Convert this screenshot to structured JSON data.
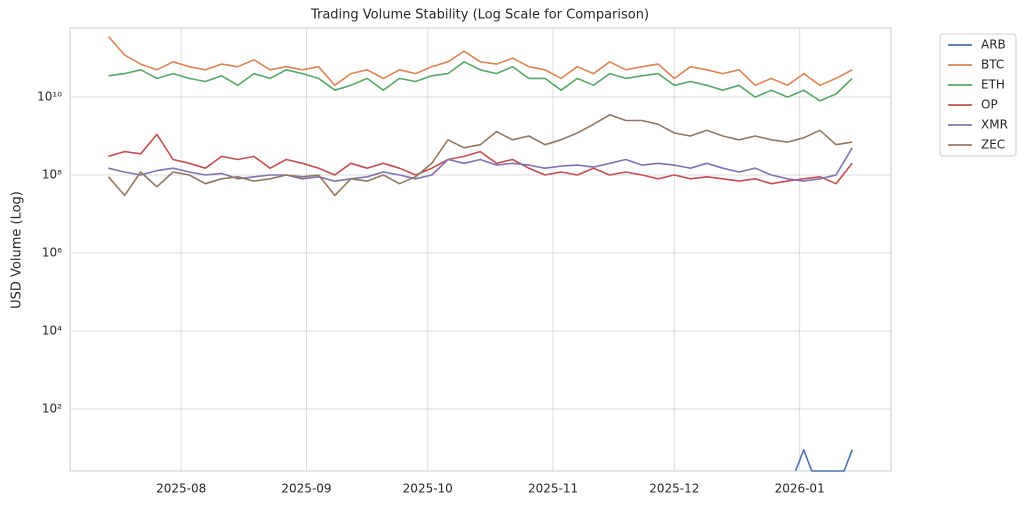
{
  "chart_data": {
    "type": "line",
    "title": "Trading Volume Stability (Log Scale for Comparison)",
    "ylabel": "USD Volume (Log)",
    "log_y": true,
    "grid": true,
    "legend": "outside-upper-right",
    "x": [
      13,
      17,
      21,
      25,
      29,
      33,
      37,
      41,
      45,
      49,
      53,
      57,
      61,
      65,
      69,
      73,
      77,
      81,
      85,
      89,
      93,
      97,
      101,
      105,
      109,
      113,
      117,
      121,
      125,
      129,
      133,
      137,
      141,
      145,
      149,
      153,
      157,
      161,
      165,
      169,
      173,
      177,
      181,
      185,
      189,
      193,
      197
    ],
    "xlim": [
      3.5,
      206.6
    ],
    "xticks": [
      {
        "value": 31,
        "label": "2025-08"
      },
      {
        "value": 62,
        "label": "2025-09"
      },
      {
        "value": 92,
        "label": "2025-10"
      },
      {
        "value": 123,
        "label": "2025-11"
      },
      {
        "value": 153,
        "label": "2025-12"
      },
      {
        "value": 184,
        "label": "2026-01"
      }
    ],
    "ylim": [
      2.57,
      590000000000
    ],
    "yticks": [
      {
        "value": 100,
        "label": "10²"
      },
      {
        "value": 10000,
        "label": "10⁴"
      },
      {
        "value": 1000000,
        "label": "10⁶"
      },
      {
        "value": 100000000,
        "label": "10⁸"
      },
      {
        "value": 10000000000,
        "label": "10¹⁰"
      }
    ],
    "series": [
      {
        "name": "ARB",
        "color": "#4c72b0",
        "x": [
          183,
          185,
          187,
          195,
          197
        ],
        "values": [
          0,
          9,
          0,
          0,
          9
        ]
      },
      {
        "name": "BTC",
        "color": "#dd8452",
        "values": [
          360000000000.0,
          120000000000.0,
          70000000000.0,
          50000000000.0,
          80000000000.0,
          60000000000.0,
          50000000000.0,
          70000000000.0,
          60000000000.0,
          90000000000.0,
          50000000000.0,
          60000000000.0,
          50000000000.0,
          60000000000.0,
          20000000000.0,
          40000000000.0,
          50000000000.0,
          30000000000.0,
          50000000000.0,
          40000000000.0,
          60000000000.0,
          80000000000.0,
          150000000000.0,
          80000000000.0,
          70000000000.0,
          100000000000.0,
          60000000000.0,
          50000000000.0,
          30000000000.0,
          60000000000.0,
          40000000000.0,
          80000000000.0,
          50000000000.0,
          60000000000.0,
          70000000000.0,
          30000000000.0,
          60000000000.0,
          50000000000.0,
          40000000000.0,
          50000000000.0,
          20000000000.0,
          30000000000.0,
          20000000000.0,
          40000000000.0,
          20000000000.0,
          30000000000.0,
          50000000000.0
        ]
      },
      {
        "name": "ETH",
        "color": "#55a868",
        "values": [
          35000000000.0,
          40000000000.0,
          50000000000.0,
          30000000000.0,
          40000000000.0,
          30000000000.0,
          25000000000.0,
          35000000000.0,
          20000000000.0,
          40000000000.0,
          30000000000.0,
          50000000000.0,
          40000000000.0,
          30000000000.0,
          15000000000.0,
          20000000000.0,
          30000000000.0,
          15000000000.0,
          30000000000.0,
          25000000000.0,
          35000000000.0,
          40000000000.0,
          80000000000.0,
          50000000000.0,
          40000000000.0,
          60000000000.0,
          30000000000.0,
          30000000000.0,
          15000000000.0,
          30000000000.0,
          20000000000.0,
          40000000000.0,
          30000000000.0,
          35000000000.0,
          40000000000.0,
          20000000000.0,
          25000000000.0,
          20000000000.0,
          15000000000.0,
          20000000000.0,
          10000000000.0,
          15000000000.0,
          10000000000.0,
          15000000000.0,
          8000000000.0,
          12000000000.0,
          30000000000.0
        ]
      },
      {
        "name": "OP",
        "color": "#c44e52",
        "values": [
          300000000.0,
          400000000.0,
          350000000.0,
          1100000000.0,
          250000000.0,
          200000000.0,
          150000000.0,
          300000000.0,
          250000000.0,
          300000000.0,
          150000000.0,
          250000000.0,
          200000000.0,
          150000000.0,
          100000000.0,
          200000000.0,
          150000000.0,
          200000000.0,
          150000000.0,
          100000000.0,
          150000000.0,
          250000000.0,
          300000000.0,
          400000000.0,
          200000000.0,
          250000000.0,
          150000000.0,
          100000000.0,
          120000000.0,
          100000000.0,
          150000000.0,
          100000000.0,
          120000000.0,
          100000000.0,
          80000000.0,
          100000000.0,
          80000000.0,
          90000000.0,
          80000000.0,
          70000000.0,
          80000000.0,
          60000000.0,
          70000000.0,
          80000000.0,
          90000000.0,
          60000000.0,
          200000000.0
        ]
      },
      {
        "name": "XMR",
        "color": "#8172b3",
        "values": [
          150000000.0,
          120000000.0,
          100000000.0,
          130000000.0,
          150000000.0,
          120000000.0,
          100000000.0,
          110000000.0,
          80000000.0,
          90000000.0,
          100000000.0,
          100000000.0,
          80000000.0,
          90000000.0,
          70000000.0,
          80000000.0,
          90000000.0,
          120000000.0,
          100000000.0,
          80000000.0,
          100000000.0,
          250000000.0,
          200000000.0,
          250000000.0,
          180000000.0,
          200000000.0,
          180000000.0,
          150000000.0,
          170000000.0,
          180000000.0,
          160000000.0,
          200000000.0,
          250000000.0,
          180000000.0,
          200000000.0,
          180000000.0,
          150000000.0,
          200000000.0,
          150000000.0,
          120000000.0,
          150000000.0,
          100000000.0,
          80000000.0,
          70000000.0,
          80000000.0,
          100000000.0,
          500000000.0
        ]
      },
      {
        "name": "ZEC",
        "color": "#937860",
        "values": [
          90000000.0,
          30000000.0,
          120000000.0,
          50000000.0,
          120000000.0,
          100000000.0,
          60000000.0,
          80000000.0,
          90000000.0,
          70000000.0,
          80000000.0,
          100000000.0,
          90000000.0,
          100000000.0,
          30000000.0,
          80000000.0,
          70000000.0,
          100000000.0,
          60000000.0,
          90000000.0,
          200000000.0,
          800000000.0,
          500000000.0,
          600000000.0,
          1300000000.0,
          800000000.0,
          1000000000.0,
          600000000.0,
          800000000.0,
          1200000000.0,
          2000000000.0,
          3500000000.0,
          2500000000.0,
          2500000000.0,
          2000000000.0,
          1200000000.0,
          1000000000.0,
          1400000000.0,
          1000000000.0,
          800000000.0,
          1000000000.0,
          800000000.0,
          700000000.0,
          900000000.0,
          1400000000.0,
          600000000.0,
          700000000.0
        ]
      }
    ]
  }
}
